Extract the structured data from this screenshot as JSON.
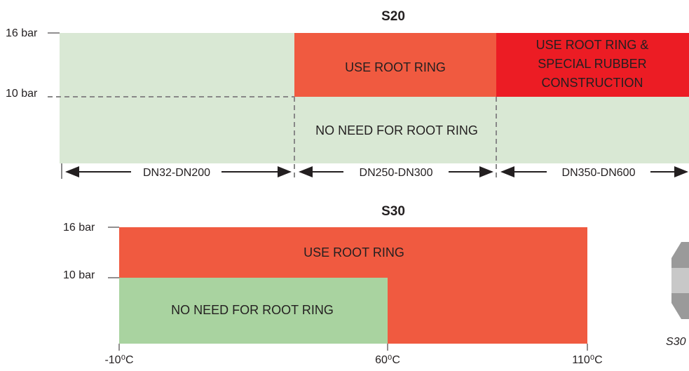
{
  "s20": {
    "title": "S20",
    "y_labels": [
      "16 bar",
      "10 bar"
    ],
    "regions": {
      "low": "NO NEED FOR ROOT RING",
      "mid": "USE ROOT RING",
      "high": [
        "USE ROOT RING &",
        "SPECIAL RUBBER",
        "CONSTRUCTION"
      ]
    },
    "ranges": [
      "DN32-DN200",
      "DN250-DN300",
      "DN350-DN600"
    ]
  },
  "s30": {
    "title": "S30",
    "y_labels": [
      "16 bar",
      "10 bar"
    ],
    "regions": {
      "high": "USE ROOT RING",
      "low": "NO NEED FOR ROOT RING"
    },
    "x_labels": [
      "-10⁰C",
      "60⁰C",
      "110⁰C"
    ],
    "caption": "S30"
  }
}
